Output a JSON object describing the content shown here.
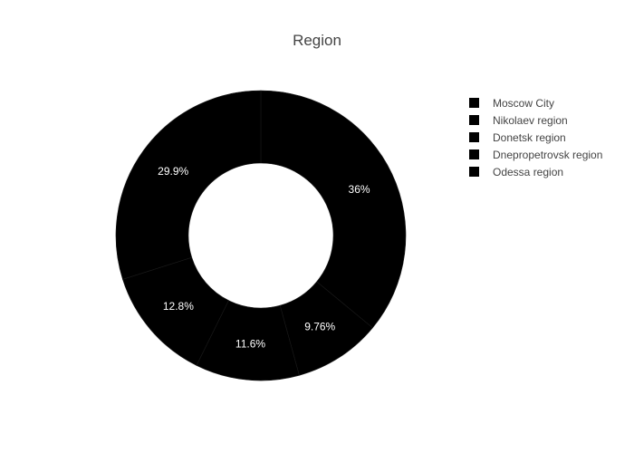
{
  "chart_data": {
    "type": "pie",
    "hole": 0.5,
    "title": "Region",
    "labels": [
      "Moscow City",
      "Nikolaev region",
      "Donetsk region",
      "Dnepropetrovsk region",
      "Odessa region"
    ],
    "values": [
      36,
      9.76,
      11.6,
      12.8,
      29.9
    ],
    "text_labels": [
      "36%",
      "9.76%",
      "11.6%",
      "12.8%",
      "29.9%"
    ],
    "colors": [
      "#000000",
      "#000000",
      "#000000",
      "#000000",
      "#000000"
    ],
    "legend": {
      "placement": "top-right",
      "entries": [
        "Moscow City",
        "Nikolaev region",
        "Donetsk region",
        "Dnepropetrovsk region",
        "Odessa region"
      ]
    }
  }
}
